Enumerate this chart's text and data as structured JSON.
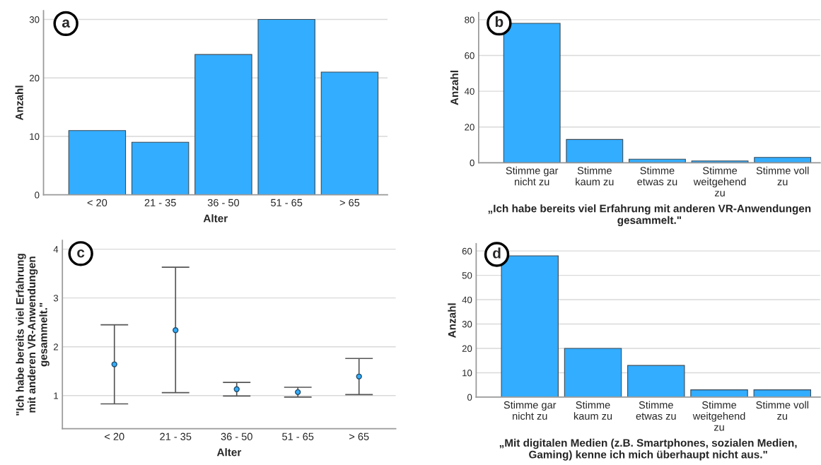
{
  "chart_data": [
    {
      "type": "bar",
      "categories": [
        "< 20",
        "21 - 35",
        "36 - 50",
        "51 - 65",
        "> 65"
      ],
      "values": [
        11,
        9,
        24,
        30,
        21
      ],
      "color": "#33adff",
      "xlabel": "Alter",
      "ylabel": "Anzahl",
      "ylim": [
        0,
        31.5
      ],
      "yticks": [
        0,
        10,
        20,
        30
      ],
      "grid": "y",
      "annotations": [
        "a"
      ]
    },
    {
      "type": "bar",
      "categories": [
        "Stimme gar\nnicht zu",
        "Stimme\nkaum zu",
        "Stimme\netwas zu",
        "Stimme\nweitgehend\nzu",
        "Stimme voll\nzu"
      ],
      "values": [
        78,
        13,
        2,
        1,
        3
      ],
      "color": "#33adff",
      "xlabel": "„Ich habe bereits viel Erfahrung mit anderen VR-Anwendungen\ngesammelt.\"",
      "ylabel": "Anzahl",
      "ylim": [
        0,
        84
      ],
      "yticks": [
        0,
        20,
        40,
        60,
        80
      ],
      "grid": "y",
      "annotations": [
        "b"
      ]
    },
    {
      "type": "scatter",
      "categories": [
        "< 20",
        "21 - 35",
        "36 - 50",
        "51 - 65",
        "> 65"
      ],
      "values": [
        1.64,
        2.34,
        1.13,
        1.07,
        1.39
      ],
      "errors": [
        [
          0.83,
          2.45
        ],
        [
          1.06,
          3.63
        ],
        [
          0.99,
          1.27
        ],
        [
          0.97,
          1.17
        ],
        [
          1.02,
          1.76
        ]
      ],
      "color": "#33adff",
      "marker": "circle",
      "xlabel": "Alter",
      "ylabel": "\"Ich habe bereits viel Erfahrung\nmit anderen VR-Anwendungen\ngesammelt.\"",
      "ylim": [
        0.32,
        4.18
      ],
      "yticks": [
        1,
        2,
        3,
        4
      ],
      "grid": "y",
      "annotations": [
        "c"
      ]
    },
    {
      "type": "bar",
      "categories": [
        "Stimme gar\nnicht zu",
        "Stimme\nkaum zu",
        "Stimme\netwas zu",
        "Stimme\nweitgehend\nzu",
        "Stimme voll\nzu"
      ],
      "values": [
        58,
        20,
        13,
        3,
        3
      ],
      "color": "#33adff",
      "xlabel": "„Mit digitalen Medien (z.B. Smartphones, sozialen Medien,\nGaming) kenne ich mich überhaupt nicht aus.\"",
      "ylabel": "Anzahl",
      "ylim": [
        0,
        63
      ],
      "yticks": [
        0,
        10,
        20,
        30,
        40,
        50,
        60
      ],
      "grid": "y",
      "annotations": [
        "d"
      ]
    }
  ]
}
